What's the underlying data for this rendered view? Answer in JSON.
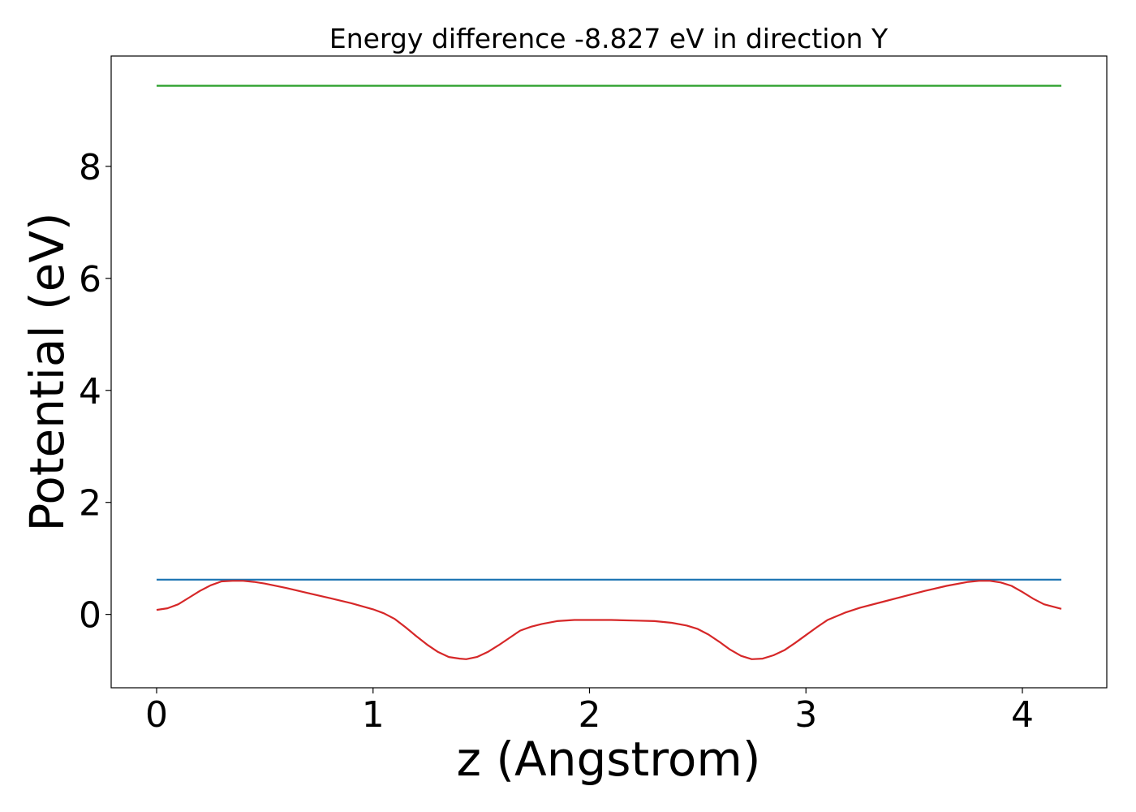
{
  "chart_data": {
    "type": "line",
    "title": "Energy difference -8.827 eV in direction Y",
    "xlabel": "z (Angstrom)",
    "ylabel": "Potential (eV)",
    "xlim": [
      -0.21,
      4.39
    ],
    "ylim": [
      -1.31,
      9.97
    ],
    "xticks": [
      0,
      1,
      2,
      3,
      4
    ],
    "yticks": [
      0,
      2,
      4,
      6,
      8
    ],
    "grid": false,
    "series": [
      {
        "color": "#2ca02c",
        "style": "horizontal",
        "x": [
          0,
          4.18
        ],
        "values": [
          9.44,
          9.44
        ]
      },
      {
        "color": "#1f77b4",
        "style": "horizontal",
        "x": [
          0,
          4.18
        ],
        "values": [
          0.62,
          0.62
        ]
      },
      {
        "color": "#d62728",
        "x": [
          0.0,
          0.05,
          0.1,
          0.15,
          0.2,
          0.25,
          0.3,
          0.35,
          0.4,
          0.45,
          0.5,
          0.6,
          0.7,
          0.8,
          0.9,
          1.0,
          1.05,
          1.1,
          1.15,
          1.2,
          1.25,
          1.3,
          1.35,
          1.4,
          1.43,
          1.48,
          1.53,
          1.58,
          1.63,
          1.68,
          1.73,
          1.78,
          1.85,
          1.93,
          2.0,
          2.1,
          2.2,
          2.3,
          2.38,
          2.45,
          2.5,
          2.55,
          2.6,
          2.65,
          2.7,
          2.75,
          2.8,
          2.85,
          2.9,
          2.95,
          3.0,
          3.05,
          3.1,
          3.18,
          3.25,
          3.35,
          3.45,
          3.55,
          3.65,
          3.75,
          3.8,
          3.85,
          3.9,
          3.95,
          4.0,
          4.05,
          4.1,
          4.18
        ],
        "values": [
          0.08,
          0.11,
          0.18,
          0.3,
          0.42,
          0.52,
          0.59,
          0.6,
          0.6,
          0.58,
          0.55,
          0.47,
          0.38,
          0.29,
          0.2,
          0.09,
          0.02,
          -0.08,
          -0.23,
          -0.39,
          -0.54,
          -0.67,
          -0.76,
          -0.79,
          -0.8,
          -0.76,
          -0.67,
          -0.55,
          -0.42,
          -0.29,
          -0.22,
          -0.17,
          -0.12,
          -0.1,
          -0.1,
          -0.1,
          -0.11,
          -0.12,
          -0.15,
          -0.2,
          -0.26,
          -0.36,
          -0.49,
          -0.63,
          -0.74,
          -0.8,
          -0.79,
          -0.73,
          -0.64,
          -0.51,
          -0.37,
          -0.23,
          -0.1,
          0.03,
          0.12,
          0.22,
          0.32,
          0.42,
          0.51,
          0.58,
          0.6,
          0.6,
          0.57,
          0.51,
          0.4,
          0.28,
          0.18,
          0.1
        ]
      }
    ]
  }
}
